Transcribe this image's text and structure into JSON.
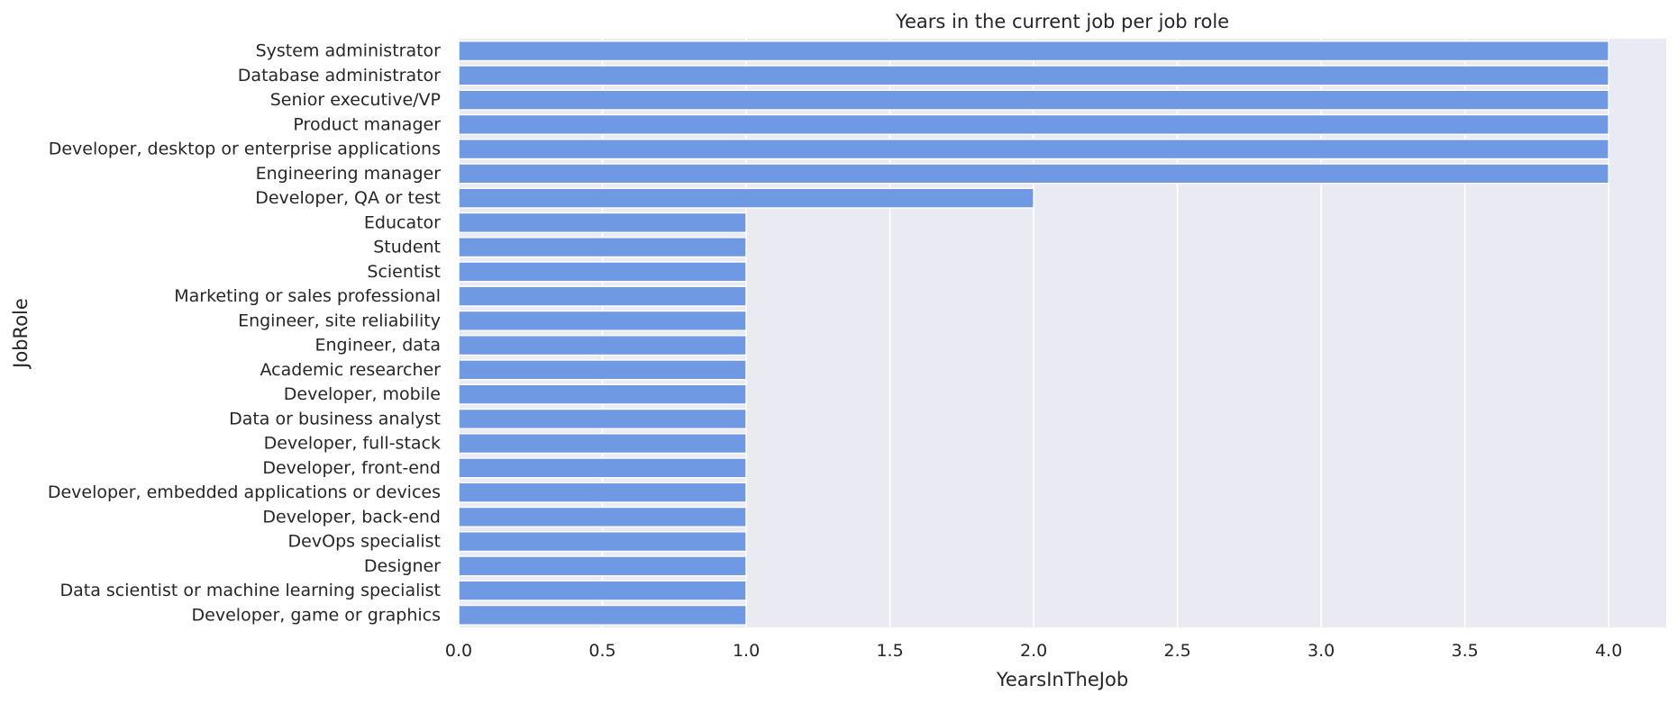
{
  "chart_data": {
    "type": "bar",
    "orientation": "horizontal",
    "title": "Years in the current job per job role",
    "xlabel": "YearsInTheJob",
    "ylabel": "JobRole",
    "xlim": [
      0,
      4.2
    ],
    "xticks": [
      0.0,
      0.5,
      1.0,
      1.5,
      2.0,
      2.5,
      3.0,
      3.5,
      4.0
    ],
    "grid": true,
    "bar_color": "#6f9ae3",
    "background_color": "#eaeaf2",
    "categories": [
      "System administrator",
      "Database administrator",
      "Senior executive/VP",
      "Product manager",
      "Developer, desktop or enterprise applications",
      "Engineering manager",
      "Developer, QA or test",
      "Educator",
      "Student",
      "Scientist",
      "Marketing or sales professional",
      "Engineer, site reliability",
      "Engineer, data",
      "Academic researcher",
      "Developer, mobile",
      "Data or business analyst",
      "Developer, full-stack",
      "Developer, front-end",
      "Developer, embedded applications or devices",
      "Developer, back-end",
      "DevOps specialist",
      "Designer",
      "Data scientist or machine learning specialist",
      "Developer, game or graphics"
    ],
    "values": [
      4,
      4,
      4,
      4,
      4,
      4,
      2,
      1,
      1,
      1,
      1,
      1,
      1,
      1,
      1,
      1,
      1,
      1,
      1,
      1,
      1,
      1,
      1,
      1
    ]
  }
}
